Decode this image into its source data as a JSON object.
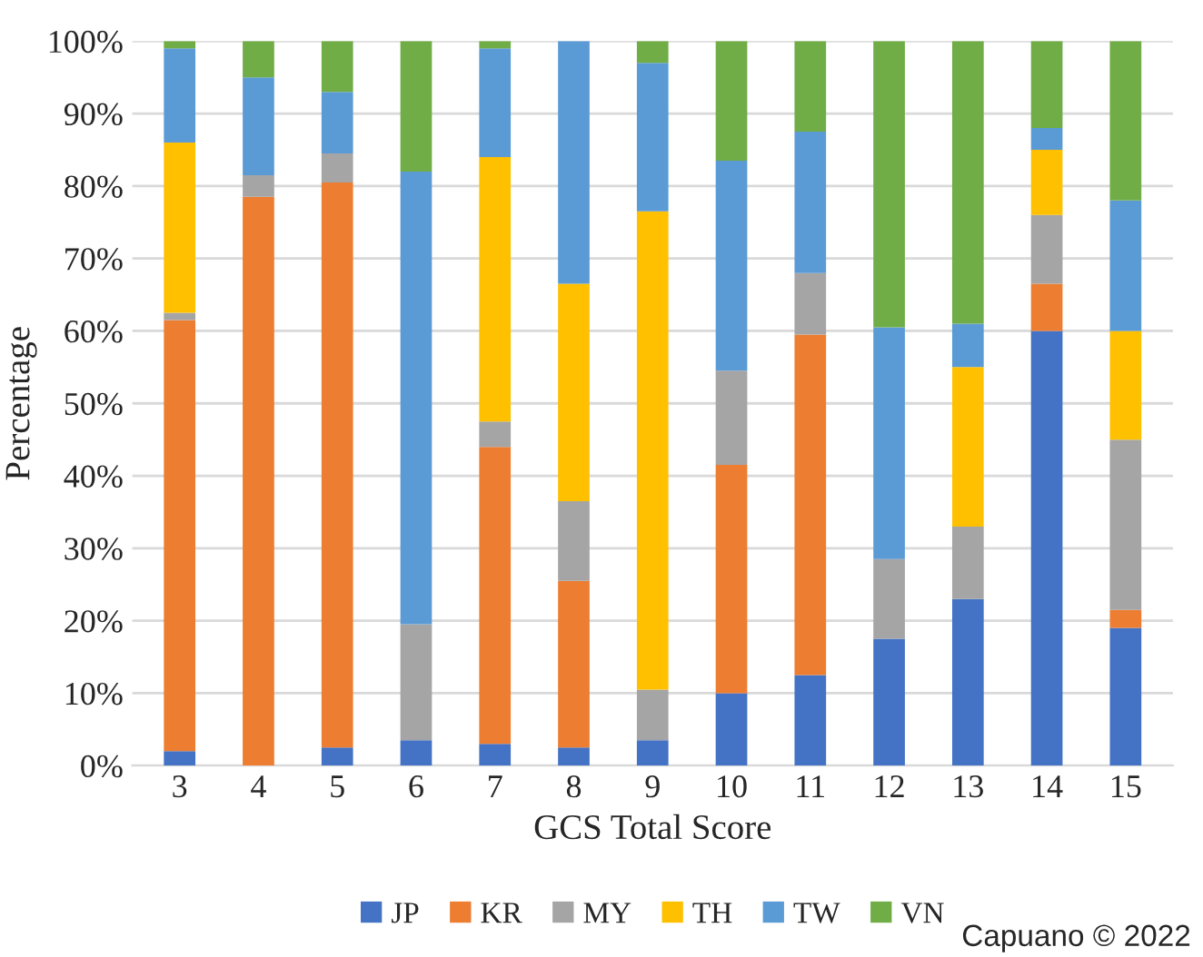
{
  "chart_data": {
    "type": "bar",
    "stacked": true,
    "xlabel": "GCS Total Score",
    "ylabel": "Percentage",
    "categories": [
      "3",
      "4",
      "5",
      "6",
      "7",
      "8",
      "9",
      "10",
      "11",
      "12",
      "13",
      "14",
      "15"
    ],
    "series": [
      {
        "name": "JP",
        "color": "#4472c4",
        "values": [
          2,
          0,
          2.5,
          3.5,
          3,
          2.5,
          3.5,
          10,
          12.5,
          17.5,
          23,
          60,
          19
        ]
      },
      {
        "name": "KR",
        "color": "#ed7d31",
        "values": [
          59.5,
          78.5,
          78,
          0,
          41,
          23,
          0,
          31.5,
          47,
          0,
          0,
          6.5,
          2.5
        ]
      },
      {
        "name": "MY",
        "color": "#a5a5a5",
        "values": [
          1,
          3,
          4,
          16,
          3.5,
          11,
          7,
          13,
          8.5,
          11,
          10,
          9.5,
          23.5
        ]
      },
      {
        "name": "TH",
        "color": "#ffc000",
        "values": [
          23.5,
          0,
          0,
          0,
          36.5,
          30,
          66,
          0,
          0,
          0,
          22,
          9,
          15
        ]
      },
      {
        "name": "TW",
        "color": "#5b9bd5",
        "values": [
          13,
          13.5,
          8.5,
          62.5,
          15,
          33.5,
          20.5,
          29,
          19.5,
          32,
          6,
          3,
          18
        ]
      },
      {
        "name": "VN",
        "color": "#70ad47",
        "values": [
          1,
          5,
          7,
          18,
          1,
          0,
          3,
          16.5,
          12.5,
          39.5,
          39,
          12,
          22
        ]
      }
    ],
    "ylim": [
      0,
      100
    ],
    "yticks": [
      {
        "value": 0,
        "label": "0%"
      },
      {
        "value": 10,
        "label": "10%"
      },
      {
        "value": 20,
        "label": "20%"
      },
      {
        "value": 30,
        "label": "30%"
      },
      {
        "value": 40,
        "label": "40%"
      },
      {
        "value": 50,
        "label": "50%"
      },
      {
        "value": 60,
        "label": "60%"
      },
      {
        "value": 70,
        "label": "70%"
      },
      {
        "value": 80,
        "label": "80%"
      },
      {
        "value": 90,
        "label": "90%"
      },
      {
        "value": 100,
        "label": "100%"
      }
    ],
    "grid": "y",
    "legend": "bottom",
    "annotations": [
      "Capuano © 2022"
    ]
  }
}
